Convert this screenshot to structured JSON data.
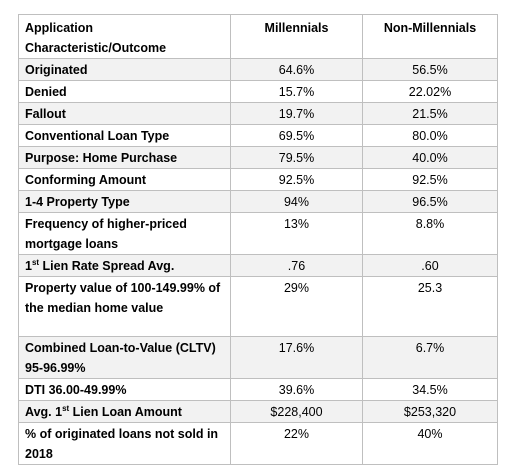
{
  "table": {
    "header": [
      "Application Characteristic/Outcome",
      "Millennials",
      "Non-Millennials"
    ],
    "rows": [
      [
        "Originated",
        "64.6%",
        "56.5%"
      ],
      [
        "Denied",
        "15.7%",
        "22.02%"
      ],
      [
        "Fallout",
        "19.7%",
        "21.5%"
      ],
      [
        "Conventional Loan Type",
        "69.5%",
        "80.0%"
      ],
      [
        "Purpose: Home Purchase",
        "79.5%",
        "40.0%"
      ],
      [
        "Conforming Amount",
        "92.5%",
        "92.5%"
      ],
      [
        "1-4 Property Type",
        "94%",
        "96.5%"
      ],
      [
        "Frequency of higher-priced mortgage loans",
        "13%",
        "8.8%"
      ],
      [
        [
          "1",
          "st",
          " Lien Rate Spread Avg."
        ],
        ".76",
        ".60"
      ],
      [
        "Property value of 100-149.99% of the median home value",
        "29%",
        "25.3"
      ],
      [
        "Combined Loan-to-Value (CLTV) 95-96.99%",
        "17.6%",
        "6.7%"
      ],
      [
        "DTI 36.00-49.99%",
        "39.6%",
        "34.5%"
      ],
      [
        [
          "Avg. 1",
          "st",
          " Lien Loan Amount"
        ],
        "$228,400",
        "$253,320"
      ],
      [
        "% of originated loans not sold in 2018",
        "22%",
        "40%"
      ]
    ]
  }
}
